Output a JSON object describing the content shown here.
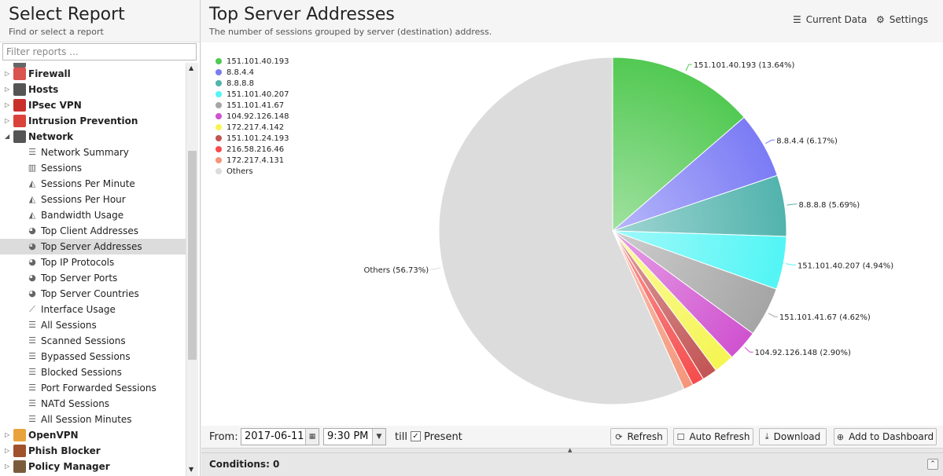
{
  "sidebar": {
    "title": "Select Report",
    "subtitle": "Find or select a report",
    "filter_placeholder": "Filter reports ...",
    "categories_top": [
      {
        "label": "Firewall",
        "icon": "firewall-icon",
        "color": "#d9534f"
      },
      {
        "label": "Hosts",
        "icon": "hosts-icon",
        "color": "#555555"
      },
      {
        "label": "IPsec VPN",
        "icon": "lock-icon",
        "color": "#c9302c"
      },
      {
        "label": "Intrusion Prevention",
        "icon": "intrusion-prevention-icon",
        "color": "#d9433a"
      },
      {
        "label": "Network",
        "icon": "network-icon",
        "color": "#555555"
      }
    ],
    "network_items": [
      {
        "label": "Network Summary",
        "icon": "list-icon",
        "glyph": "☰"
      },
      {
        "label": "Sessions",
        "icon": "bar-chart-icon",
        "glyph": "▥"
      },
      {
        "label": "Sessions Per Minute",
        "icon": "area-chart-icon",
        "glyph": "◭"
      },
      {
        "label": "Sessions Per Hour",
        "icon": "area-chart-icon",
        "glyph": "◭"
      },
      {
        "label": "Bandwidth Usage",
        "icon": "area-chart-icon",
        "glyph": "◭"
      },
      {
        "label": "Top Client Addresses",
        "icon": "pie-chart-icon",
        "glyph": "◕"
      },
      {
        "label": "Top Server Addresses",
        "icon": "pie-chart-icon",
        "glyph": "◕"
      },
      {
        "label": "Top IP Protocols",
        "icon": "pie-chart-icon",
        "glyph": "◕"
      },
      {
        "label": "Top Server Ports",
        "icon": "pie-chart-icon",
        "glyph": "◕"
      },
      {
        "label": "Top Server Countries",
        "icon": "pie-chart-icon",
        "glyph": "◕"
      },
      {
        "label": "Interface Usage",
        "icon": "line-chart-icon",
        "glyph": "⟋"
      },
      {
        "label": "All Sessions",
        "icon": "list-icon",
        "glyph": "☰"
      },
      {
        "label": "Scanned Sessions",
        "icon": "list-icon",
        "glyph": "☰"
      },
      {
        "label": "Bypassed Sessions",
        "icon": "list-icon",
        "glyph": "☰"
      },
      {
        "label": "Blocked Sessions",
        "icon": "list-icon",
        "glyph": "☰"
      },
      {
        "label": "Port Forwarded Sessions",
        "icon": "list-icon",
        "glyph": "☰"
      },
      {
        "label": "NATd Sessions",
        "icon": "list-icon",
        "glyph": "☰"
      },
      {
        "label": "All Session Minutes",
        "icon": "list-icon",
        "glyph": "☰"
      }
    ],
    "selected_item": "Top Server Addresses",
    "categories_bottom": [
      {
        "label": "OpenVPN",
        "icon": "openvpn-icon",
        "color": "#e8a33d"
      },
      {
        "label": "Phish Blocker",
        "icon": "phish-blocker-icon",
        "color": "#a0522d"
      },
      {
        "label": "Policy Manager",
        "icon": "policy-manager-icon",
        "color": "#7a5c3c"
      }
    ]
  },
  "report": {
    "title": "Top Server Addresses",
    "description": "The number of sessions grouped by server (destination) address.",
    "current_data_label": "Current Data",
    "settings_label": "Settings"
  },
  "chart_data": {
    "type": "pie",
    "title": "",
    "legend_position": "top-left",
    "slices": [
      {
        "label": "151.101.40.193",
        "value": 13.64,
        "color": "#52c952"
      },
      {
        "label": "8.8.4.4",
        "value": 6.17,
        "color": "#7b7bf5"
      },
      {
        "label": "8.8.8.8",
        "value": 5.69,
        "color": "#52b3ad"
      },
      {
        "label": "151.101.40.207",
        "value": 4.94,
        "color": "#52f5f5"
      },
      {
        "label": "151.101.41.67",
        "value": 4.62,
        "color": "#a5a5a5"
      },
      {
        "label": "104.92.126.148",
        "value": 2.9,
        "color": "#d052d0"
      },
      {
        "label": "172.217.4.142",
        "value": 1.9,
        "color": "#f5f552"
      },
      {
        "label": "151.101.24.193",
        "value": 1.4,
        "color": "#c25454"
      },
      {
        "label": "216.58.216.46",
        "value": 1.1,
        "color": "#f54c4c"
      },
      {
        "label": "172.217.4.131",
        "value": 0.9,
        "color": "#f5957a"
      },
      {
        "label": "Others",
        "value": 56.73,
        "color": "#dcdcdc"
      }
    ],
    "data_labels": [
      {
        "text": "151.101.40.193 (13.64%)",
        "slice": 0
      },
      {
        "text": "8.8.4.4 (6.17%)",
        "slice": 1
      },
      {
        "text": "8.8.8.8 (5.69%)",
        "slice": 2
      },
      {
        "text": "151.101.40.207 (4.94%)",
        "slice": 3
      },
      {
        "text": "151.101.41.67 (4.62%)",
        "slice": 4
      },
      {
        "text": "104.92.126.148 (2.90%)",
        "slice": 5
      },
      {
        "text": "Others (56.73%)",
        "slice": 10
      }
    ]
  },
  "toolbar": {
    "from_label": "From:",
    "date_value": "2017-06-11",
    "time_value": "9:30 PM",
    "till_label": "till",
    "present_label": "Present",
    "present_checked": true,
    "refresh_label": "Refresh",
    "auto_refresh_label": "Auto Refresh",
    "download_label": "Download",
    "add_dashboard_label": "Add to Dashboard"
  },
  "conditions": {
    "label": "Conditions: 0"
  }
}
